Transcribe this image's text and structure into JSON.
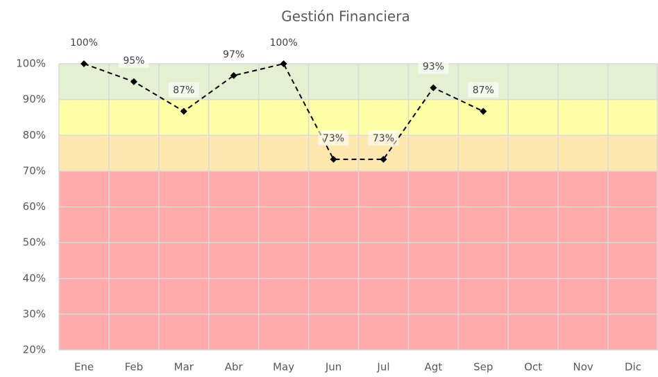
{
  "chart_data": {
    "type": "line",
    "title": "Gestión Financiera",
    "categories": [
      "Ene",
      "Feb",
      "Mar",
      "Abr",
      "May",
      "Jun",
      "Jul",
      "Agt",
      "Sep",
      "Oct",
      "Nov",
      "Dic"
    ],
    "series": [
      {
        "name": "Gestión Financiera",
        "color": "#000000",
        "values": [
          100,
          95,
          86.7,
          96.7,
          100,
          73.3,
          73.3,
          93.3,
          86.7,
          null,
          null,
          null
        ],
        "value_labels": [
          "100%",
          "95%",
          "87%",
          "97%",
          "100%",
          "73%",
          "73%",
          "93%",
          "87%",
          null,
          null,
          null
        ]
      }
    ],
    "ylim": [
      20,
      100
    ],
    "yticks": [
      {
        "value": 20,
        "label": "20%"
      },
      {
        "value": 30,
        "label": "30%"
      },
      {
        "value": 40,
        "label": "40%"
      },
      {
        "value": 50,
        "label": "50%"
      },
      {
        "value": 60,
        "label": "60%"
      },
      {
        "value": 70,
        "label": "70%"
      },
      {
        "value": 80,
        "label": "80%"
      },
      {
        "value": 90,
        "label": "90%"
      },
      {
        "value": 100,
        "label": "100%"
      }
    ],
    "bands": [
      {
        "from": 20,
        "to": 70,
        "color": "#ffabab"
      },
      {
        "from": 70,
        "to": 80,
        "color": "#ffe7b0"
      },
      {
        "from": 80,
        "to": 90,
        "color": "#ffffa8"
      },
      {
        "from": 90,
        "to": 100,
        "color": "#e3f0d2"
      }
    ],
    "grid": true
  }
}
